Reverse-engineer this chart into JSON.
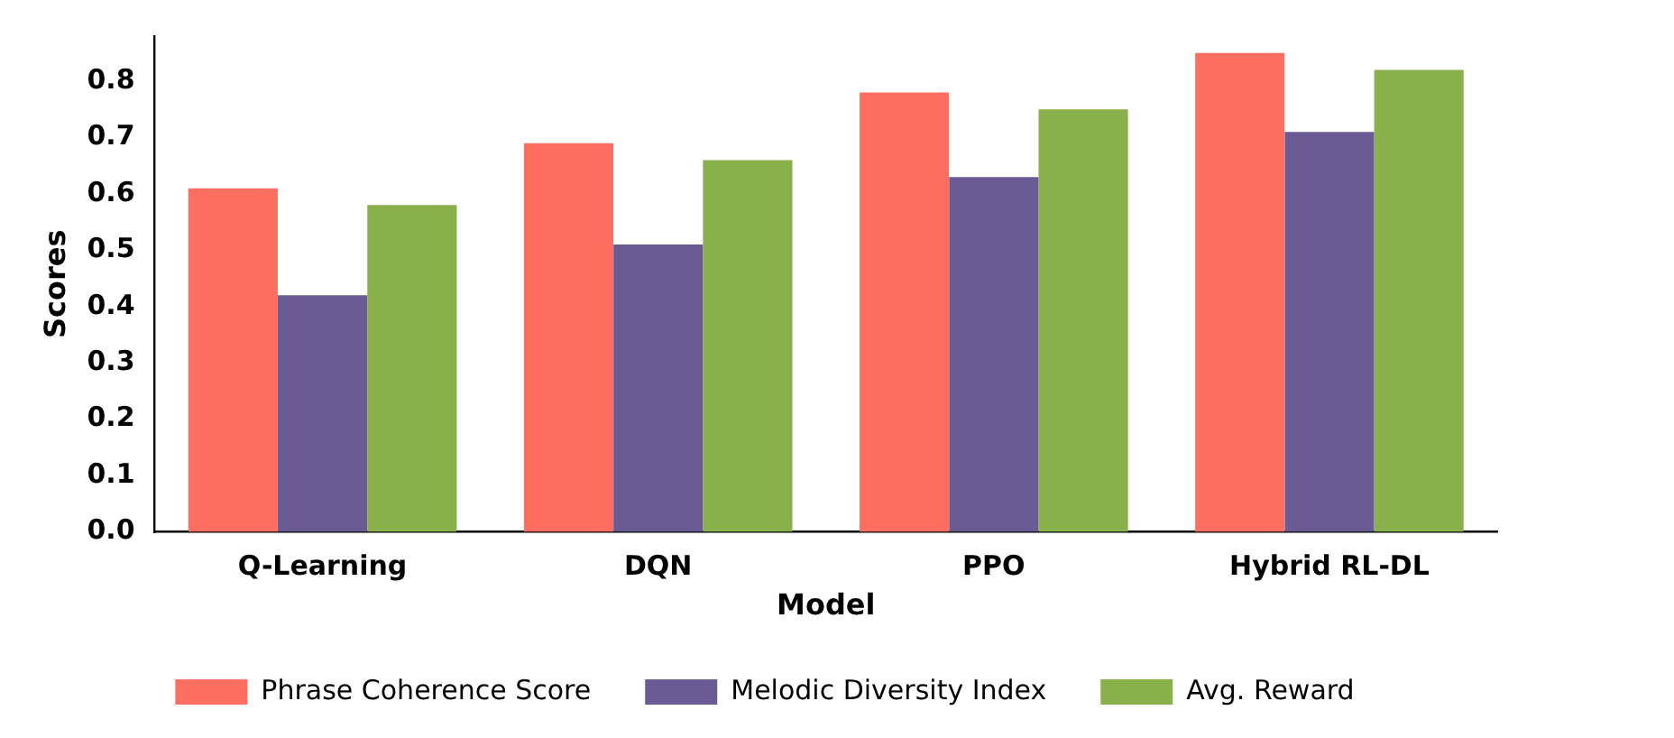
{
  "chart_data": {
    "type": "bar",
    "xlabel": "Model",
    "ylabel": "Scores",
    "categories": [
      "Q-Learning",
      "DQN",
      "PPO",
      "Hybrid RL-DL"
    ],
    "series": [
      {
        "name": "Phrase Coherence Score",
        "color": "#ff6f61",
        "values": [
          0.61,
          0.69,
          0.78,
          0.85
        ]
      },
      {
        "name": "Melodic Diversity Index",
        "color": "#6b5b95",
        "values": [
          0.42,
          0.51,
          0.63,
          0.71
        ]
      },
      {
        "name": "Avg. Reward",
        "color": "#88b04b",
        "values": [
          0.58,
          0.66,
          0.75,
          0.82
        ]
      }
    ],
    "ylim": [
      0,
      0.88
    ],
    "yticks": [
      {
        "value": 0,
        "label": "0.0"
      },
      0.1,
      0.2,
      0.3,
      0.4,
      0.5,
      0.6,
      0.7,
      0.8
    ],
    "grid": false,
    "legend": "bottom"
  }
}
